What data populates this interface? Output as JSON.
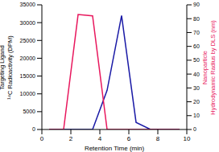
{
  "chart_data": {
    "type": "line",
    "xlabel": "Retention Time (min)",
    "ylabel": [
      "Targeting Ligand",
      "¹⁴C Radioactivity (DPM)"
    ],
    "y2label": [
      "Nanoparticle",
      "Hydrodynamic Radius by DLS (nm)"
    ],
    "x": [
      0.5,
      1.5,
      2.5,
      3.5,
      4.5,
      5.5,
      6.5,
      7.5,
      8.5,
      9.5
    ],
    "xlim": [
      0,
      10
    ],
    "xticks": [
      0,
      2,
      4,
      6,
      8,
      10
    ],
    "ylim": [
      0,
      35000
    ],
    "yticks": [
      0,
      5000,
      10000,
      15000,
      20000,
      25000,
      30000,
      35000
    ],
    "y2lim": [
      0,
      90
    ],
    "y2ticks": [
      0,
      10,
      20,
      30,
      40,
      50,
      60,
      70,
      80,
      90
    ],
    "grid": false,
    "series": [
      {
        "name": "Targeting Ligand ¹⁴C Radioactivity",
        "color": "#1a1aa6",
        "values": [
          0,
          0,
          0,
          0,
          11000,
          32000,
          2000,
          0,
          0,
          0
        ]
      },
      {
        "name": "Nanoparticle Hydrodynamic Radius",
        "color": "#e8175d",
        "axis": "y2",
        "values": [
          0,
          0,
          83,
          82,
          0,
          0,
          0,
          0,
          0,
          0
        ]
      }
    ]
  }
}
